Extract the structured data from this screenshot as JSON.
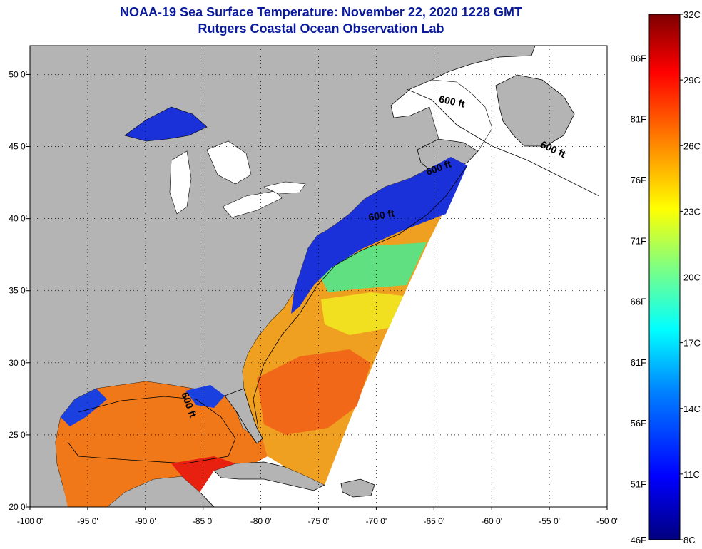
{
  "title": "NOAA-19 Sea Surface Temperature:  November 22, 2020 1228 GMT",
  "subtitle": "Rutgers Coastal Ocean Observation Lab",
  "map": {
    "lon_range": [
      -100,
      -50
    ],
    "lat_range": [
      20,
      52
    ],
    "lon_ticks": [
      {
        "v": -100,
        "label": "-100 0'"
      },
      {
        "v": -95,
        "label": "-95 0'"
      },
      {
        "v": -90,
        "label": "-90 0'"
      },
      {
        "v": -85,
        "label": "-85 0'"
      },
      {
        "v": -80,
        "label": "-80 0'"
      },
      {
        "v": -75,
        "label": "-75 0'"
      },
      {
        "v": -70,
        "label": "-70 0'"
      },
      {
        "v": -65,
        "label": "-65 0'"
      },
      {
        "v": -60,
        "label": "-60 0'"
      },
      {
        "v": -55,
        "label": "-55 0'"
      },
      {
        "v": -50,
        "label": "-50 0'"
      }
    ],
    "lat_ticks": [
      {
        "v": 20,
        "label": "20 0'"
      },
      {
        "v": 25,
        "label": "25 0'"
      },
      {
        "v": 30,
        "label": "30 0'"
      },
      {
        "v": 35,
        "label": "35 0'"
      },
      {
        "v": 40,
        "label": "40 0'"
      },
      {
        "v": 45,
        "label": "45 0'"
      },
      {
        "v": 50,
        "label": "50 0'"
      }
    ],
    "grid": "dotted",
    "land_color": "#b4b4b4",
    "isobath_label": "600 ft",
    "isobath_labels": [
      {
        "lon": -63.5,
        "lat": 47.9,
        "rot": 12
      },
      {
        "lon": -54.8,
        "lat": 44.6,
        "rot": 25
      },
      {
        "lon": -64.5,
        "lat": 43.3,
        "rot": -20
      },
      {
        "lon": -69.5,
        "lat": 40.0,
        "rot": -10
      },
      {
        "lon": -86.5,
        "lat": 27.0,
        "rot": 70
      }
    ]
  },
  "colorbar": {
    "celsius_range": [
      8,
      32
    ],
    "c_labels": [
      "32C",
      "29C",
      "26C",
      "23C",
      "20C",
      "17C",
      "14C",
      "11C",
      "8C"
    ],
    "f_labels": [
      {
        "v": 86,
        "label": "86F"
      },
      {
        "v": 81,
        "label": "81F"
      },
      {
        "v": 76,
        "label": "76F"
      },
      {
        "v": 71,
        "label": "71F"
      },
      {
        "v": 66,
        "label": "66F"
      },
      {
        "v": 61,
        "label": "61F"
      },
      {
        "v": 56,
        "label": "56F"
      },
      {
        "v": 51,
        "label": "51F"
      },
      {
        "v": 46,
        "label": "46F"
      }
    ],
    "colors": [
      "#00007f",
      "#0000ff",
      "#0080ff",
      "#00ffff",
      "#80ff80",
      "#ffff00",
      "#ff8000",
      "#ff0000",
      "#7f0000"
    ]
  }
}
